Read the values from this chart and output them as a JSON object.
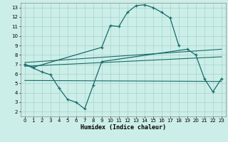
{
  "xlabel": "Humidex (Indice chaleur)",
  "bg_color": "#cceee8",
  "line_color": "#1a6b6b",
  "grid_color": "#aad8d0",
  "xlim": [
    -0.5,
    23.5
  ],
  "ylim": [
    1.5,
    13.5
  ],
  "xticks": [
    0,
    1,
    2,
    3,
    4,
    5,
    6,
    7,
    8,
    9,
    10,
    11,
    12,
    13,
    14,
    15,
    16,
    17,
    18,
    19,
    20,
    21,
    22,
    23
  ],
  "yticks": [
    2,
    3,
    4,
    5,
    6,
    7,
    8,
    9,
    10,
    11,
    12,
    13
  ],
  "series_curve1": {
    "x": [
      0,
      1,
      9,
      10,
      11,
      12,
      13,
      14,
      15,
      16,
      17,
      18
    ],
    "y": [
      7.0,
      6.7,
      8.8,
      11.1,
      11.0,
      12.5,
      13.2,
      13.3,
      13.0,
      12.5,
      11.9,
      9.0
    ]
  },
  "series_curve2": {
    "x": [
      0,
      2,
      3,
      4,
      5,
      6,
      7,
      8,
      9,
      19,
      20,
      21,
      22,
      23
    ],
    "y": [
      7.0,
      6.2,
      5.9,
      4.5,
      3.3,
      3.0,
      2.3,
      4.8,
      7.3,
      8.6,
      8.0,
      5.5,
      4.1,
      5.5
    ]
  },
  "trend_lines": [
    {
      "x": [
        0,
        23
      ],
      "y": [
        7.2,
        8.6
      ]
    },
    {
      "x": [
        0,
        23
      ],
      "y": [
        6.8,
        7.8
      ]
    },
    {
      "x": [
        0,
        23
      ],
      "y": [
        5.3,
        5.2
      ]
    }
  ]
}
